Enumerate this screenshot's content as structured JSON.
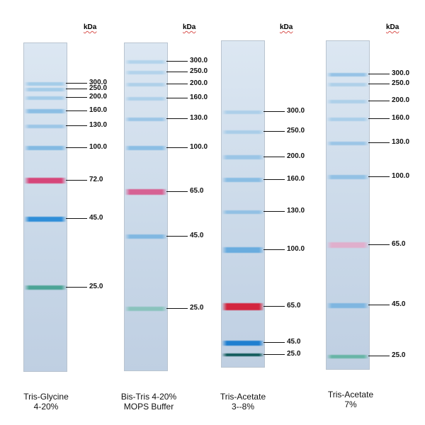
{
  "unit_label": "kDa",
  "lanes": [
    {
      "caption": [
        "Tris-Glycine",
        "4-20%"
      ],
      "bands": [
        {
          "label": "300.0",
          "color": "#8fc2e6",
          "strength": 0.7
        },
        {
          "label": "250.0",
          "color": "#8fc2e6",
          "strength": 0.7
        },
        {
          "label": "200.0",
          "color": "#8fc2e6",
          "strength": 0.7
        },
        {
          "label": "160.0",
          "color": "#7ab6e2",
          "strength": 0.8
        },
        {
          "label": "130.0",
          "color": "#85bbe4",
          "strength": 0.7
        },
        {
          "label": "100.0",
          "color": "#6fb0e0",
          "strength": 0.8
        },
        {
          "label": "72.0",
          "color": "#d6467a",
          "strength": 1.0
        },
        {
          "label": "45.0",
          "color": "#2f8ed8",
          "strength": 1.0
        },
        {
          "label": "25.0",
          "color": "#3f9f8e",
          "strength": 0.9
        }
      ]
    },
    {
      "caption": [
        "Bis-Tris 4-20%",
        "MOPS Buffer"
      ],
      "bands": [
        {
          "label": "300.0",
          "color": "#9ac8e8",
          "strength": 0.6
        },
        {
          "label": "250.0",
          "color": "#9ac8e8",
          "strength": 0.6
        },
        {
          "label": "200.0",
          "color": "#94c4e6",
          "strength": 0.6
        },
        {
          "label": "160.0",
          "color": "#94c4e6",
          "strength": 0.6
        },
        {
          "label": "130.0",
          "color": "#85bbe4",
          "strength": 0.7
        },
        {
          "label": "100.0",
          "color": "#7ab6e2",
          "strength": 0.8
        },
        {
          "label": "65.0",
          "color": "#d8548a",
          "strength": 0.9
        },
        {
          "label": "45.0",
          "color": "#6fb0e0",
          "strength": 0.8
        },
        {
          "label": "25.0",
          "color": "#7cc0b4",
          "strength": 0.8
        }
      ]
    },
    {
      "caption": [
        "Tris-Acetate",
        "3--8%"
      ],
      "bands": [
        {
          "label": "300.0",
          "color": "#94c4e6",
          "strength": 0.6
        },
        {
          "label": "250.0",
          "color": "#8fc2e6",
          "strength": 0.6
        },
        {
          "label": "200.0",
          "color": "#85bbe4",
          "strength": 0.7
        },
        {
          "label": "160.0",
          "color": "#7ab6e2",
          "strength": 0.8
        },
        {
          "label": "130.0",
          "color": "#7ab6e2",
          "strength": 0.7
        },
        {
          "label": "100.0",
          "color": "#5fa8de",
          "strength": 0.9
        },
        {
          "label": "65.0",
          "color": "#d3263f",
          "strength": 1.0
        },
        {
          "label": "45.0",
          "color": "#1f7fd0",
          "strength": 1.0
        },
        {
          "label": "25.0",
          "color": "#0f5a5a",
          "strength": 1.0
        }
      ]
    },
    {
      "caption": [
        "Tris-Acetate",
        "7%"
      ],
      "bands": [
        {
          "label": "300.0",
          "color": "#7ab6e2",
          "strength": 0.7
        },
        {
          "label": "250.0",
          "color": "#94c4e6",
          "strength": 0.6
        },
        {
          "label": "200.0",
          "color": "#94c4e6",
          "strength": 0.6
        },
        {
          "label": "160.0",
          "color": "#8fc2e6",
          "strength": 0.6
        },
        {
          "label": "130.0",
          "color": "#85bbe4",
          "strength": 0.7
        },
        {
          "label": "100.0",
          "color": "#7ab6e2",
          "strength": 0.7
        },
        {
          "label": "65.0",
          "color": "#e6a6c6",
          "strength": 0.8
        },
        {
          "label": "45.0",
          "color": "#6fb0e0",
          "strength": 0.8
        },
        {
          "label": "25.0",
          "color": "#5fb3a0",
          "strength": 0.9
        }
      ]
    }
  ]
}
